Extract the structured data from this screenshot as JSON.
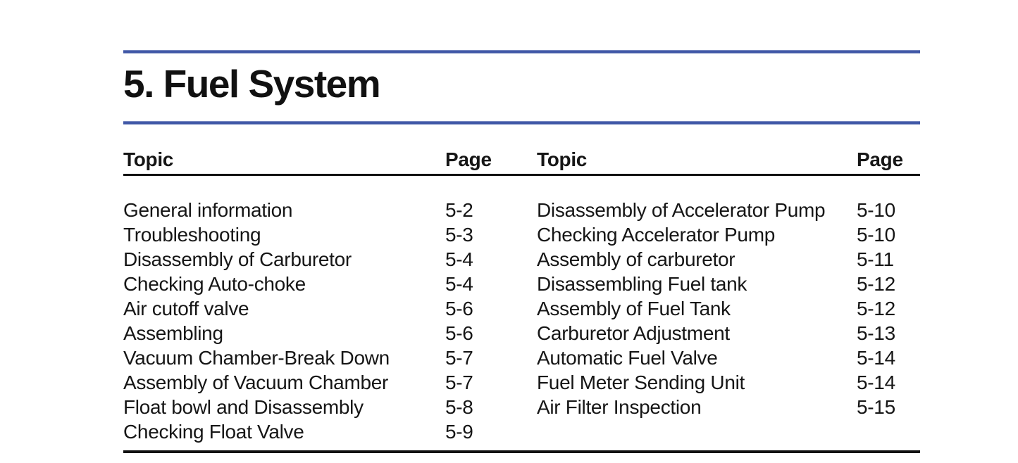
{
  "theme": {
    "accent_color": "#3e56a6",
    "rule_color": "#111111",
    "text_color": "#161616"
  },
  "header": {
    "title": "5. Fuel System"
  },
  "toc": {
    "left": {
      "topic_header": "Topic",
      "page_header": "Page",
      "entries": [
        {
          "topic": "General information",
          "page": "5-2"
        },
        {
          "topic": "Troubleshooting",
          "page": "5-3"
        },
        {
          "topic": "Disassembly of Carburetor",
          "page": "5-4"
        },
        {
          "topic": "Checking Auto-choke",
          "page": "5-4"
        },
        {
          "topic": "Air cutoff valve",
          "page": "5-6"
        },
        {
          "topic": "Assembling",
          "page": "5-6"
        },
        {
          "topic": "Vacuum Chamber-Break Down",
          "page": "5-7"
        },
        {
          "topic": "Assembly of Vacuum Chamber",
          "page": "5-7"
        },
        {
          "topic": "Float bowl and Disassembly",
          "page": "5-8"
        },
        {
          "topic": "Checking Float Valve",
          "page": "5-9"
        }
      ]
    },
    "right": {
      "topic_header": "Topic",
      "page_header": "Page",
      "entries": [
        {
          "topic": "Disassembly of Accelerator Pump",
          "page": "5-10"
        },
        {
          "topic": "Checking Accelerator Pump",
          "page": "5-10"
        },
        {
          "topic": "Assembly of carburetor",
          "page": "5-11"
        },
        {
          "topic": "Disassembling Fuel tank",
          "page": "5-12"
        },
        {
          "topic": "Assembly of Fuel Tank",
          "page": "5-12"
        },
        {
          "topic": "Carburetor Adjustment",
          "page": "5-13"
        },
        {
          "topic": "Automatic Fuel Valve",
          "page": "5-14"
        },
        {
          "topic": "Fuel Meter Sending Unit",
          "page": "5-14"
        },
        {
          "topic": "Air Filter Inspection",
          "page": "5-15"
        }
      ]
    }
  }
}
